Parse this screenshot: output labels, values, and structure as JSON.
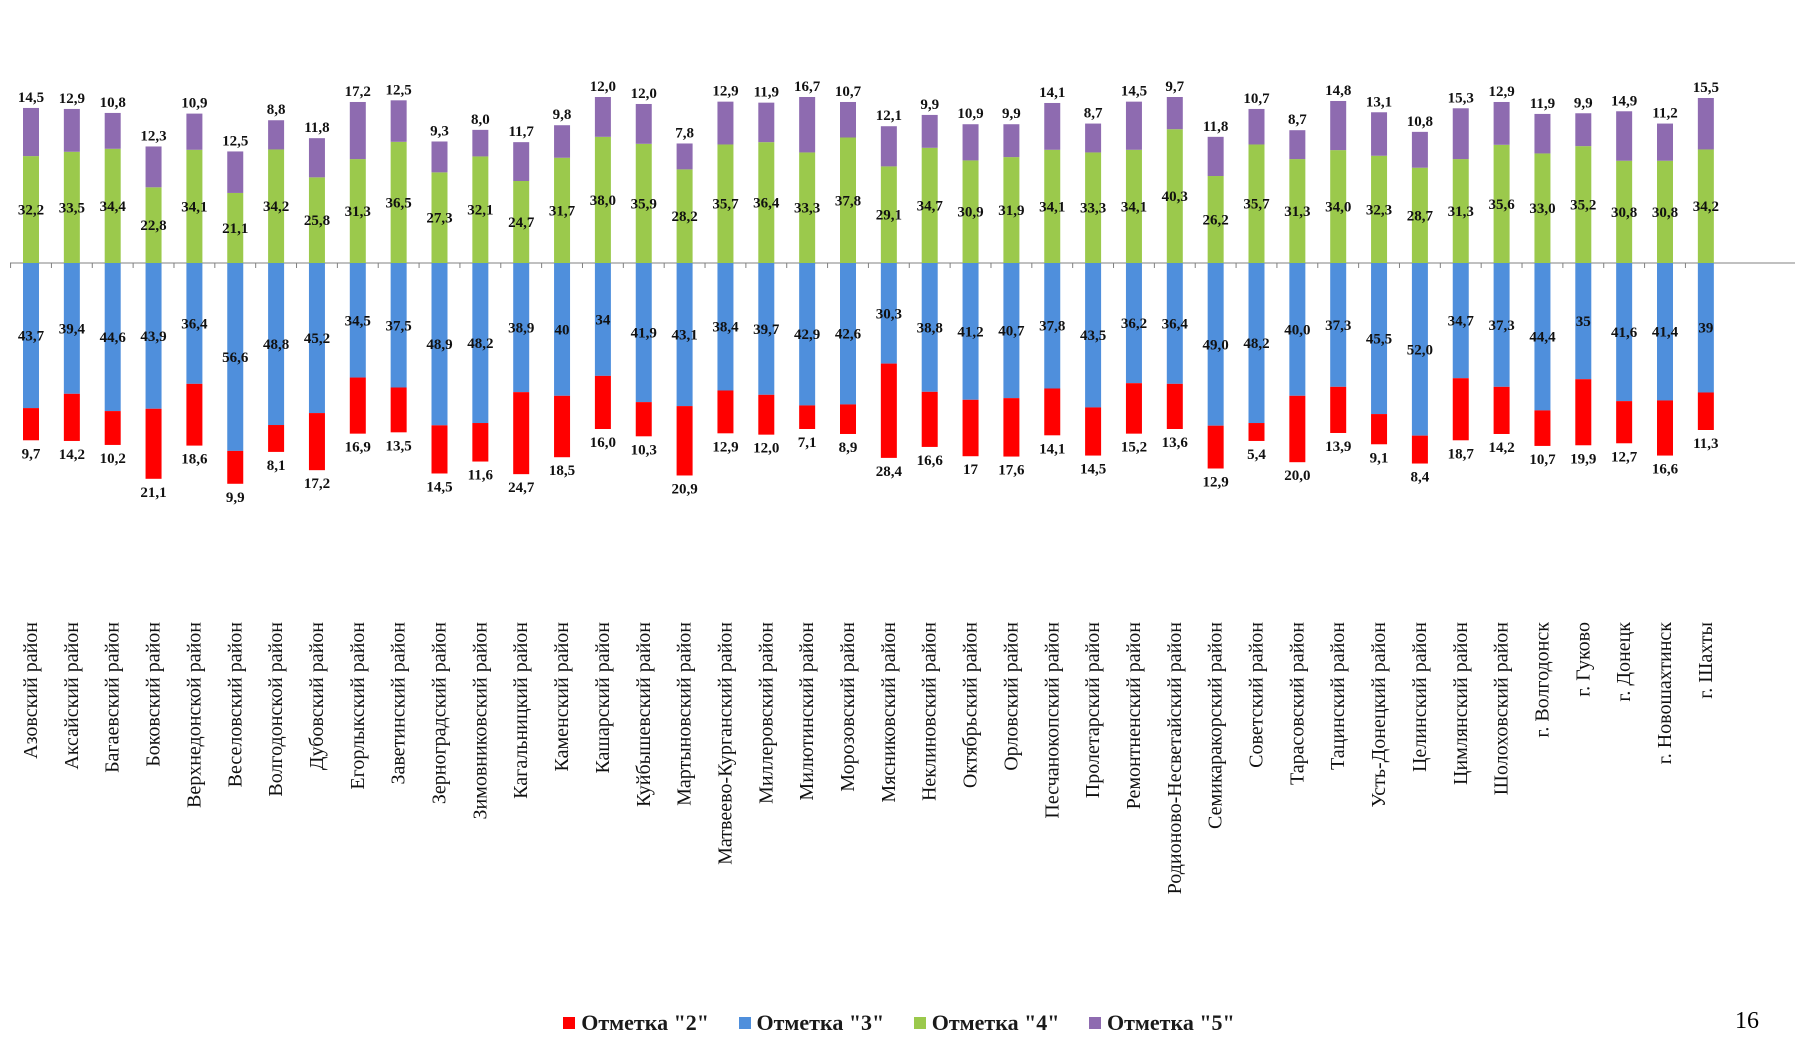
{
  "page_number": "16",
  "colors": {
    "mark2": "#ff0000",
    "mark3": "#4f8fdc",
    "mark4": "#9bc94c",
    "mark5": "#8e6bb0",
    "axis": "#808080"
  },
  "chart_data": {
    "type": "bar",
    "stacked": "diverging",
    "categories": [
      "Азовский район",
      "Аксайский район",
      "Багаевский район",
      "Боковский район",
      "Верхнедонской район",
      "Веселовский район",
      "Волгодонской район",
      "Дубовский район",
      "Егорлыкский район",
      "Заветинский район",
      "Зерноградский район",
      "Зимовниковский район",
      "Кагальницкий район",
      "Каменский район",
      "Кашарский район",
      "Куйбышевский район",
      "Мартыновский район",
      "Матвеево-Курганский район",
      "Миллеровский район",
      "Милютинский район",
      "Морозовский район",
      "Мясниковский район",
      "Неклиновский район",
      "Октябрьский район",
      "Орловский район",
      "Песчанокопский район",
      "Пролетарский район",
      "Ремонтненский район",
      "Родионово-Несветайский район",
      "Семикаракорский район",
      "Советский район",
      "Тарасовский район",
      "Тацинский район",
      "Усть-Донецкий район",
      "Целинский район",
      "Цимлянский район",
      "Шолоховский район",
      "г. Волгодонск",
      "г. Гуково",
      "г. Донецк",
      "г. Новошахтинск",
      "г. Шахты"
    ],
    "series": [
      {
        "name": "Отметка \"2\"",
        "values": [
          9.7,
          14.2,
          10.2,
          21.1,
          18.6,
          9.9,
          8.1,
          17.2,
          16.9,
          13.5,
          14.5,
          11.6,
          24.7,
          18.5,
          16.0,
          10.3,
          20.9,
          12.9,
          12.0,
          7.1,
          8.9,
          28.4,
          16.6,
          17,
          17.6,
          14.1,
          14.5,
          15.2,
          13.6,
          12.9,
          5.4,
          20.0,
          13.9,
          9.1,
          8.4,
          18.7,
          14.2,
          10.7,
          19.9,
          12.7,
          16.6,
          11.3
        ],
        "labels": [
          "9,7",
          "14,2",
          "10,2",
          "21,1",
          "18,6",
          "9,9",
          "8,1",
          "17,2",
          "16,9",
          "13,5",
          "14,5",
          "11,6",
          "24,7",
          "18,5",
          "16,0",
          "10,3",
          "20,9",
          "12,9",
          "12,0",
          "7,1",
          "8,9",
          "28,4",
          "16,6",
          "17",
          "17,6",
          "14,1",
          "14,5",
          "15,2",
          "13,6",
          "12,9",
          "5,4",
          "20,0",
          "13,9",
          "9,1",
          "8,4",
          "18,7",
          "14,2",
          "10,7",
          "19,9",
          "12,7",
          "16,6",
          "11,3"
        ]
      },
      {
        "name": "Отметка \"3\"",
        "values": [
          43.7,
          39.4,
          44.6,
          43.9,
          36.4,
          56.6,
          48.8,
          45.2,
          34.5,
          37.5,
          48.9,
          48.2,
          38.9,
          40,
          34,
          41.9,
          43.1,
          38.4,
          39.7,
          42.9,
          42.6,
          30.3,
          38.8,
          41.2,
          40.7,
          37.8,
          43.5,
          36.2,
          36.4,
          49.0,
          48.2,
          40.0,
          37.3,
          45.5,
          52.0,
          34.7,
          37.3,
          44.4,
          35,
          41.6,
          41.4,
          39
        ],
        "labels": [
          "43,7",
          "39,4",
          "44,6",
          "43,9",
          "36,4",
          "56,6",
          "48,8",
          "45,2",
          "34,5",
          "37,5",
          "48,9",
          "48,2",
          "38,9",
          "40",
          "34",
          "41,9",
          "43,1",
          "38,4",
          "39,7",
          "42,9",
          "42,6",
          "30,3",
          "38,8",
          "41,2",
          "40,7",
          "37,8",
          "43,5",
          "36,2",
          "36,4",
          "49,0",
          "48,2",
          "40,0",
          "37,3",
          "45,5",
          "52,0",
          "34,7",
          "37,3",
          "44,4",
          "35",
          "41,6",
          "41,4",
          "39"
        ]
      },
      {
        "name": "Отметка \"4\"",
        "values": [
          32.2,
          33.5,
          34.4,
          22.8,
          34.1,
          21.1,
          34.2,
          25.8,
          31.3,
          36.5,
          27.3,
          32.1,
          24.7,
          31.7,
          38.0,
          35.9,
          28.2,
          35.7,
          36.4,
          33.3,
          37.8,
          29.1,
          34.7,
          30.9,
          31.9,
          34.1,
          33.3,
          34.1,
          40.3,
          26.2,
          35.7,
          31.3,
          34.0,
          32.3,
          28.7,
          31.3,
          35.6,
          33.0,
          35.2,
          30.8,
          30.8,
          34.2
        ],
        "labels": [
          "32,2",
          "33,5",
          "34,4",
          "22,8",
          "34,1",
          "21,1",
          "34,2",
          "25,8",
          "31,3",
          "36,5",
          "27,3",
          "32,1",
          "24,7",
          "31,7",
          "38,0",
          "35,9",
          "28,2",
          "35,7",
          "36,4",
          "33,3",
          "37,8",
          "29,1",
          "34,7",
          "30,9",
          "31,9",
          "34,1",
          "33,3",
          "34,1",
          "40,3",
          "26,2",
          "35,7",
          "31,3",
          "34,0",
          "32,3",
          "28,7",
          "31,3",
          "35,6",
          "33,0",
          "35,2",
          "30,8",
          "30,8",
          "34,2"
        ]
      },
      {
        "name": "Отметка \"5\"",
        "values": [
          14.5,
          12.9,
          10.8,
          12.3,
          10.9,
          12.5,
          8.8,
          11.8,
          17.2,
          12.5,
          9.3,
          8.0,
          11.7,
          9.8,
          12.0,
          12.0,
          7.8,
          12.9,
          11.9,
          16.7,
          10.7,
          12.1,
          9.9,
          10.9,
          9.9,
          14.1,
          8.7,
          14.5,
          9.7,
          11.8,
          10.7,
          8.7,
          14.8,
          13.1,
          10.8,
          15.3,
          12.9,
          11.9,
          9.9,
          14.9,
          11.2,
          15.5
        ],
        "labels": [
          "14,5",
          "12,9",
          "10,8",
          "12,3",
          "10,9",
          "12,5",
          "8,8",
          "11,8",
          "17,2",
          "12,5",
          "9,3",
          "8,0",
          "11,7",
          "9,8",
          "12,0",
          "12,0",
          "7,8",
          "12,9",
          "11,9",
          "16,7",
          "10,7",
          "12,1",
          "9,9",
          "10,9",
          "9,9",
          "14,1",
          "8,7",
          "14,5",
          "9,7",
          "11,8",
          "10,7",
          "8,7",
          "14,8",
          "13,1",
          "10,8",
          "15,3",
          "12,9",
          "11,9",
          "9,9",
          "14,9",
          "11,2",
          "15,5"
        ]
      }
    ],
    "legend_position": "bottom",
    "grid": false
  }
}
